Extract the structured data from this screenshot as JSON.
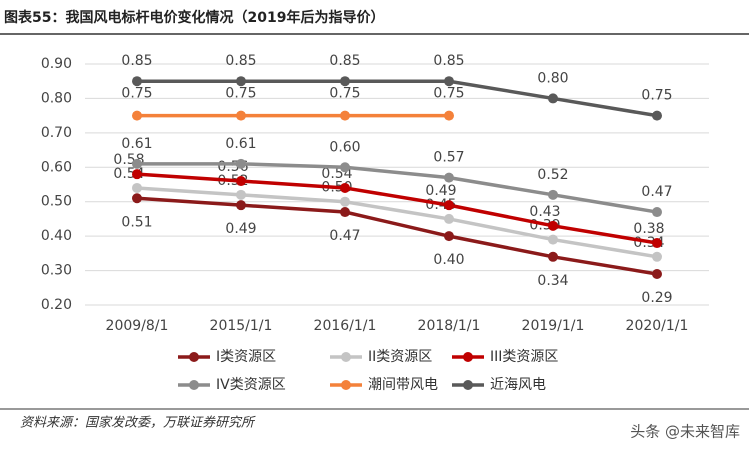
{
  "chart_data": {
    "type": "line",
    "title": "图表55：我国风电标杆电价变化情况（2019年后为指导价）",
    "categories": [
      "2009/8/1",
      "2015/1/1",
      "2016/1/1",
      "2018/1/1",
      "2019/1/1",
      "2020/1/1"
    ],
    "ylim": [
      0.2,
      0.9
    ],
    "yticks": [
      {
        "value": 0.2,
        "label": "0.20"
      },
      {
        "value": 0.3,
        "label": "0.30"
      },
      {
        "value": 0.4,
        "label": "0.40"
      },
      {
        "value": 0.5,
        "label": "0.50"
      },
      {
        "value": 0.6,
        "label": "0.60"
      },
      {
        "value": 0.7,
        "label": "0.70"
      },
      {
        "value": 0.8,
        "label": "0.80"
      },
      {
        "value": 0.9,
        "label": "0.90"
      }
    ],
    "grid": true,
    "legend": "bottom",
    "series": [
      {
        "name": "I类资源区",
        "color": "#8b1a1a",
        "values": [
          0.51,
          0.49,
          0.47,
          0.4,
          0.34,
          0.29
        ],
        "value_labels": [
          "0.51",
          "0.49",
          "0.47",
          "0.40",
          "0.34",
          "0.29"
        ]
      },
      {
        "name": "II类资源区",
        "color": "#c4c4c4",
        "values": [
          0.54,
          0.52,
          0.5,
          0.45,
          0.39,
          0.34
        ],
        "value_labels": [
          "0.54",
          "0.52",
          "0.50",
          "0.45",
          "0.39",
          "0.34"
        ]
      },
      {
        "name": "III类资源区",
        "color": "#c00000",
        "values": [
          0.58,
          0.56,
          0.54,
          0.49,
          0.43,
          0.38
        ],
        "value_labels": [
          "0.58",
          "0.56",
          "0.54",
          "0.49",
          "0.43",
          "0.38"
        ]
      },
      {
        "name": "IV类资源区",
        "color": "#8c8c8c",
        "values": [
          0.61,
          0.61,
          0.6,
          0.57,
          0.52,
          0.47
        ],
        "value_labels": [
          "0.61",
          "0.61",
          "0.60",
          "0.57",
          "0.52",
          "0.47"
        ]
      },
      {
        "name": "潮间带风电",
        "color": "#f4813a",
        "values": [
          0.75,
          0.75,
          0.75,
          0.75,
          null,
          null
        ],
        "value_labels": [
          "0.75",
          "0.75",
          "0.75",
          "0.75",
          null,
          null
        ]
      },
      {
        "name": "近海风电",
        "color": "#595959",
        "values": [
          0.85,
          0.85,
          0.85,
          0.85,
          0.8,
          0.75
        ],
        "value_labels": [
          "0.85",
          "0.85",
          "0.85",
          "0.85",
          "0.80",
          "0.75"
        ]
      }
    ]
  },
  "source": "资料来源：国家发改委，万联证券研究所",
  "watermark": "头条 @未来智库"
}
